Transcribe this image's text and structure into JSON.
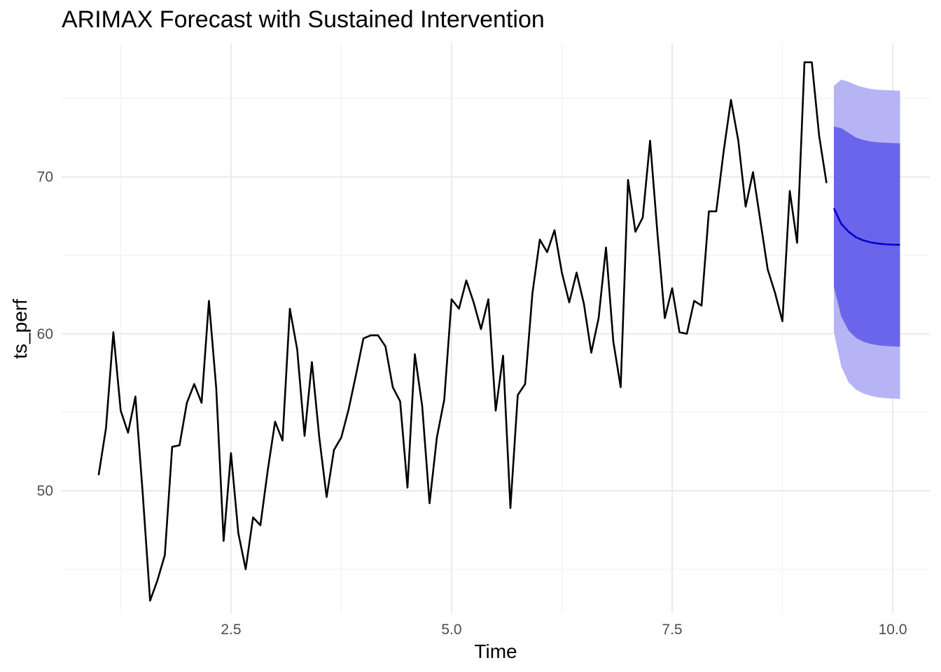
{
  "chart_data": {
    "type": "line",
    "title": "ARIMAX Forecast with Sustained Intervention",
    "xlabel": "Time",
    "ylabel": "ts_perf",
    "xlim": [
      0.58,
      10.42
    ],
    "ylim": [
      42.2,
      78.5
    ],
    "x_ticks": [
      2.5,
      5.0,
      7.5,
      10.0
    ],
    "x_tick_labels": [
      "2.5",
      "5.0",
      "7.5",
      "10.0"
    ],
    "y_ticks": [
      50,
      60,
      70
    ],
    "y_tick_labels": [
      "50",
      "60",
      "70"
    ],
    "grid": true,
    "series": [
      {
        "role": "observed",
        "x_start": 1.0,
        "x_step": 0.08333,
        "values": [
          51.0,
          54.0,
          60.1,
          55.1,
          53.7,
          56.0,
          49.8,
          43.0,
          44.3,
          45.9,
          52.8,
          52.9,
          55.6,
          56.8,
          55.6,
          62.1,
          56.5,
          46.8,
          52.4,
          47.3,
          45.0,
          48.3,
          47.8,
          51.3,
          54.4,
          53.2,
          61.6,
          59.0,
          53.5,
          58.2,
          53.4,
          49.6,
          52.6,
          53.4,
          55.2,
          57.4,
          59.7,
          59.9,
          59.9,
          59.2,
          56.6,
          55.7,
          50.2,
          58.7,
          55.4,
          49.2,
          53.4,
          55.8,
          62.2,
          61.6,
          63.4,
          62.0,
          60.3,
          62.2,
          55.1,
          58.6,
          48.9,
          56.1,
          56.8,
          62.6,
          66.0,
          65.2,
          66.6,
          63.9,
          62.0,
          63.9,
          61.9,
          58.8,
          61.0,
          65.5,
          59.5,
          56.6,
          69.8,
          66.5,
          67.4,
          72.3,
          66.4,
          61.0,
          62.9,
          60.1,
          60.0,
          62.1,
          61.8,
          67.8,
          67.8,
          71.6,
          74.9,
          72.3,
          68.1,
          70.3,
          67.2,
          64.1,
          62.6,
          60.8,
          69.1,
          65.8,
          77.3,
          77.3,
          72.6,
          69.6
        ]
      },
      {
        "role": "forecast",
        "x": [
          9.333,
          9.417,
          9.5,
          9.583,
          9.667,
          9.75,
          9.833,
          9.917,
          10.0,
          10.083
        ],
        "mean": [
          68.0,
          67.0,
          66.5,
          66.15,
          65.95,
          65.82,
          65.75,
          65.7,
          65.68,
          65.67
        ],
        "lo80": [
          63.0,
          61.1,
          60.2,
          59.75,
          59.5,
          59.35,
          59.27,
          59.22,
          59.2,
          59.18
        ],
        "hi80": [
          73.2,
          73.1,
          72.8,
          72.5,
          72.35,
          72.25,
          72.2,
          72.17,
          72.15,
          72.13
        ],
        "lo95": [
          60.1,
          57.9,
          56.9,
          56.45,
          56.2,
          56.05,
          55.95,
          55.9,
          55.87,
          55.85
        ],
        "hi95": [
          75.8,
          76.2,
          76.05,
          75.85,
          75.7,
          75.6,
          75.55,
          75.52,
          75.5,
          75.48
        ]
      }
    ],
    "colors": {
      "observed": "#000000",
      "mean": "#0000cd",
      "band80": "#6a65eb",
      "band95": "#b6b4f4",
      "grid_major": "#ebebeb",
      "grid_minor": "#f4f4f4"
    }
  }
}
